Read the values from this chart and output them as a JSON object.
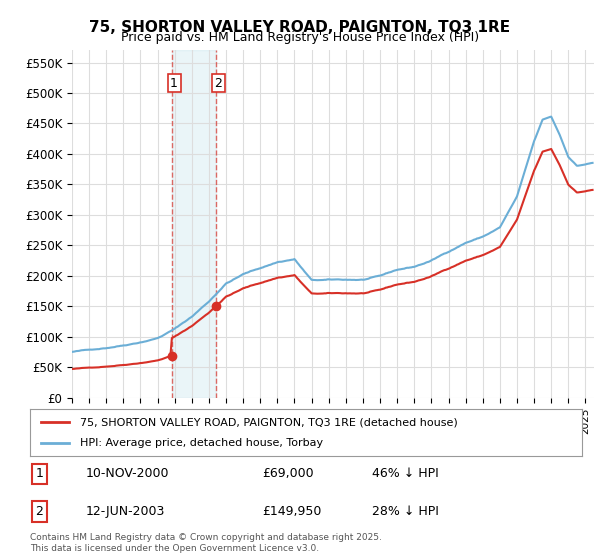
{
  "title": "75, SHORTON VALLEY ROAD, PAIGNTON, TQ3 1RE",
  "subtitle": "Price paid vs. HM Land Registry's House Price Index (HPI)",
  "ylabel_ticks": [
    "£0",
    "£50K",
    "£100K",
    "£150K",
    "£200K",
    "£250K",
    "£300K",
    "£350K",
    "£400K",
    "£450K",
    "£500K",
    "£550K"
  ],
  "ytick_values": [
    0,
    50000,
    100000,
    150000,
    200000,
    250000,
    300000,
    350000,
    400000,
    450000,
    500000,
    550000
  ],
  "ylim": [
    0,
    570000
  ],
  "hpi_color": "#6baed6",
  "price_color": "#d73027",
  "sale1_date": "10-NOV-2000",
  "sale1_price": 69000,
  "sale1_pct": "46% ↓ HPI",
  "sale2_date": "12-JUN-2003",
  "sale2_price": 149950,
  "sale2_pct": "28% ↓ HPI",
  "legend_line1": "75, SHORTON VALLEY ROAD, PAIGNTON, TQ3 1RE (detached house)",
  "legend_line2": "HPI: Average price, detached house, Torbay",
  "footer": "Contains HM Land Registry data © Crown copyright and database right 2025.\nThis data is licensed under the Open Government Licence v3.0.",
  "background_color": "#ffffff",
  "grid_color": "#dddddd"
}
